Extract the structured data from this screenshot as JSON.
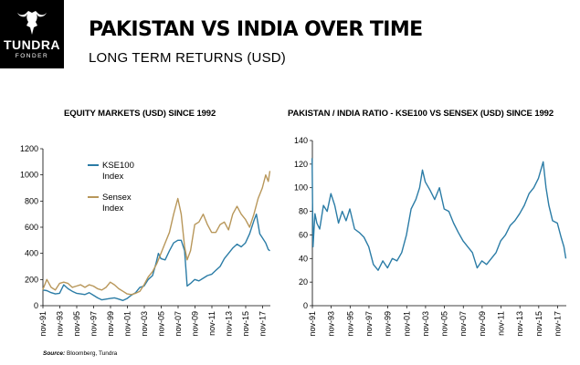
{
  "brand": {
    "name": "TUNDRA",
    "sub": "FONDER"
  },
  "header": {
    "title": "PAKISTAN VS INDIA OVER TIME",
    "subtitle": "LONG TERM RETURNS (USD)"
  },
  "source": {
    "label": "Source:",
    "text": "Bloomberg, Tundra"
  },
  "colors": {
    "kse100": "#2b7ca6",
    "sensex": "#b8975a",
    "ratio": "#2b7ca6",
    "gridline": "#d9d9d9"
  },
  "chart_data": [
    {
      "type": "line",
      "title": "EQUITY MARKETS  (USD) SINCE 1992",
      "xlabel": "",
      "ylabel": "",
      "xlim": [
        1991.83,
        2018.75
      ],
      "ylim": [
        0,
        1200
      ],
      "yticks": [
        "0",
        "200",
        "400",
        "600",
        "800",
        "1000",
        "1200"
      ],
      "xticks": [
        "nov-91",
        "nov-93",
        "nov-95",
        "nov-97",
        "nov-99",
        "nov-01",
        "nov-03",
        "nov-05",
        "nov-07",
        "nov-09",
        "nov-11",
        "nov-13",
        "nov-15",
        "nov-17"
      ],
      "grid": false,
      "legend": "top-left",
      "series": [
        {
          "name": "KSE100 Index",
          "color_key": "kse100",
          "x": [
            1991.8,
            1992.3,
            1992.8,
            1993.3,
            1993.8,
            1994.3,
            1994.8,
            1995.3,
            1995.8,
            1996.3,
            1996.8,
            1997.3,
            1997.8,
            1998.3,
            1998.8,
            1999.3,
            1999.8,
            2000.3,
            2000.8,
            2001.3,
            2001.8,
            2002.3,
            2002.8,
            2003.3,
            2003.8,
            2004.3,
            2004.8,
            2005.2,
            2005.5,
            2005.8,
            2006.3,
            2006.8,
            2007.3,
            2007.8,
            2008.2,
            2008.6,
            2008.9,
            2009.3,
            2009.8,
            2010.3,
            2010.8,
            2011.3,
            2011.8,
            2012.3,
            2012.8,
            2013.3,
            2013.8,
            2014.3,
            2014.8,
            2015.3,
            2015.8,
            2016.3,
            2016.8,
            2017.1,
            2017.5,
            2017.8,
            2018.2,
            2018.5,
            2018.7
          ],
          "y": [
            120,
            115,
            100,
            90,
            95,
            160,
            130,
            110,
            95,
            90,
            85,
            100,
            80,
            60,
            45,
            50,
            55,
            60,
            50,
            40,
            55,
            80,
            100,
            140,
            150,
            200,
            230,
            320,
            400,
            360,
            350,
            420,
            480,
            500,
            500,
            420,
            150,
            170,
            200,
            190,
            210,
            230,
            240,
            270,
            300,
            360,
            400,
            440,
            470,
            450,
            480,
            550,
            650,
            700,
            550,
            520,
            480,
            430,
            420
          ]
        },
        {
          "name": "Sensex Index",
          "color_key": "sensex",
          "x": [
            1991.8,
            1992.3,
            1992.8,
            1993.3,
            1993.8,
            1994.3,
            1994.8,
            1995.3,
            1995.8,
            1996.3,
            1996.8,
            1997.3,
            1997.8,
            1998.3,
            1998.8,
            1999.3,
            1999.8,
            2000.3,
            2000.8,
            2001.3,
            2001.8,
            2002.3,
            2002.8,
            2003.3,
            2003.8,
            2004.3,
            2004.8,
            2005.3,
            2005.8,
            2006.3,
            2006.8,
            2007.3,
            2007.8,
            2008.2,
            2008.6,
            2008.9,
            2009.3,
            2009.8,
            2010.3,
            2010.8,
            2011.3,
            2011.8,
            2012.3,
            2012.8,
            2013.3,
            2013.8,
            2014.3,
            2014.8,
            2015.3,
            2015.8,
            2016.3,
            2016.8,
            2017.3,
            2017.8,
            2018.2,
            2018.5,
            2018.7
          ],
          "y": [
            120,
            200,
            140,
            120,
            170,
            180,
            170,
            140,
            150,
            160,
            140,
            160,
            150,
            130,
            120,
            140,
            180,
            160,
            130,
            110,
            90,
            85,
            95,
            110,
            160,
            220,
            260,
            320,
            400,
            480,
            560,
            700,
            820,
            700,
            450,
            350,
            420,
            620,
            640,
            700,
            620,
            560,
            560,
            620,
            640,
            580,
            700,
            760,
            700,
            660,
            600,
            700,
            820,
            900,
            1000,
            950,
            1030
          ]
        }
      ],
      "annotations": [
        "KSE100 Index",
        "Sensex Index"
      ]
    },
    {
      "type": "line",
      "title": "PAKISTAN / INDIA RATIO - KSE100 VS SENSEX (USD) SINCE 1992",
      "xlabel": "",
      "ylabel": "",
      "xlim": [
        1991.83,
        2018.75
      ],
      "ylim": [
        0,
        140
      ],
      "yticks": [
        "0",
        "20",
        "40",
        "60",
        "80",
        "100",
        "120",
        "140"
      ],
      "xticks": [
        "nov-91",
        "nov-93",
        "nov-95",
        "nov-97",
        "nov-99",
        "nov-01",
        "nov-03",
        "nov-05",
        "nov-07",
        "nov-09",
        "nov-11",
        "nov-13",
        "nov-15",
        "nov-17"
      ],
      "grid": false,
      "series": [
        {
          "color_key": "ratio",
          "x": [
            1991.8,
            1991.9,
            1992.1,
            1992.3,
            1992.6,
            1993.0,
            1993.4,
            1993.8,
            1994.2,
            1994.6,
            1995.0,
            1995.4,
            1995.8,
            1996.3,
            1996.8,
            1997.3,
            1997.8,
            1998.3,
            1998.8,
            1999.3,
            1999.8,
            2000.3,
            2000.8,
            2001.3,
            2001.8,
            2002.3,
            2002.8,
            2003.2,
            2003.5,
            2003.8,
            2004.3,
            2004.8,
            2005.3,
            2005.8,
            2006.3,
            2006.8,
            2007.3,
            2007.8,
            2008.3,
            2008.8,
            2009.3,
            2009.8,
            2010.3,
            2010.8,
            2011.3,
            2011.8,
            2012.3,
            2012.8,
            2013.3,
            2013.8,
            2014.3,
            2014.8,
            2015.3,
            2015.8,
            2016.3,
            2016.6,
            2016.9,
            2017.3,
            2017.8,
            2018.2,
            2018.5,
            2018.7
          ],
          "y": [
            125,
            50,
            78,
            70,
            65,
            85,
            80,
            95,
            85,
            70,
            80,
            72,
            82,
            65,
            62,
            58,
            50,
            35,
            30,
            38,
            32,
            40,
            38,
            45,
            60,
            82,
            90,
            100,
            115,
            105,
            98,
            90,
            100,
            82,
            80,
            70,
            62,
            55,
            50,
            45,
            32,
            38,
            35,
            40,
            45,
            55,
            60,
            68,
            72,
            78,
            85,
            95,
            100,
            108,
            122,
            100,
            85,
            72,
            70,
            58,
            50,
            40
          ]
        }
      ]
    }
  ]
}
